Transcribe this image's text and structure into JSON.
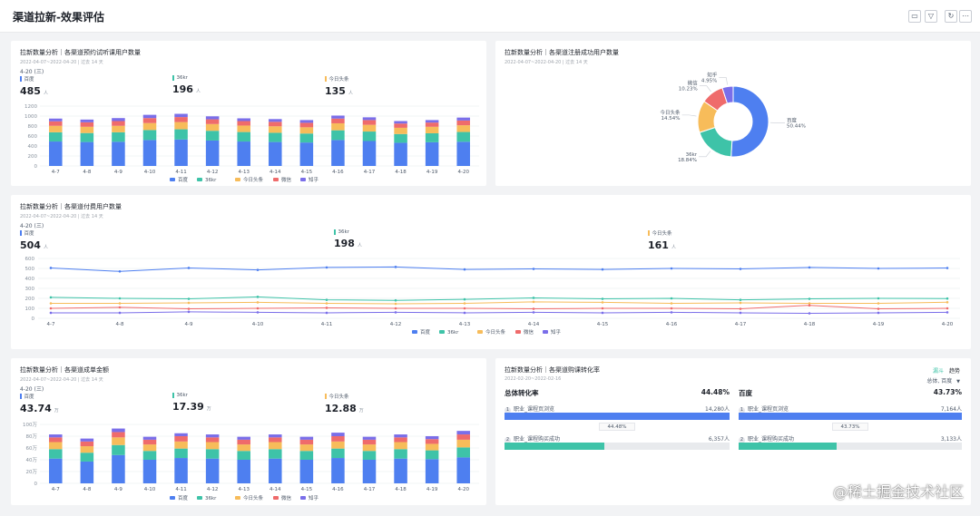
{
  "header": {
    "title": "渠道拉新-效果评估",
    "icons": [
      "save-icon",
      "filter-icon",
      "refresh-icon",
      "more-icon"
    ]
  },
  "colors": {
    "baidu": "#4e7ff0",
    "36kr": "#3ec3a8",
    "toutiao": "#f7bc5a",
    "weixin": "#ef6b6b",
    "zhihu": "#7a6ee9"
  },
  "card1": {
    "title": "拉新数量分析｜各渠道预约试听课用户数量",
    "subtitle": "2022-04-07~2022-04-20 | 过去 14 天",
    "date": "4-20 (三)",
    "kpis": [
      {
        "label": "百度",
        "value": "485",
        "unit": "人"
      },
      {
        "label": "36kr",
        "value": "196",
        "unit": "人"
      },
      {
        "label": "今日头条",
        "value": "135",
        "unit": "人"
      }
    ]
  },
  "card2": {
    "title": "拉新数量分析｜各渠道注册成功用户数量",
    "subtitle": "2022-04-07~2022-04-20 | 过去 14 天"
  },
  "card3": {
    "title": "拉新数量分析｜各渠道付费用户数量",
    "subtitle": "2022-04-07~2022-04-20 | 过去 14 天",
    "date": "4-20 (三)",
    "kpis": [
      {
        "label": "百度",
        "value": "504",
        "unit": "人"
      },
      {
        "label": "36kr",
        "value": "198",
        "unit": "人"
      },
      {
        "label": "今日头条",
        "value": "161",
        "unit": "人"
      }
    ]
  },
  "card4": {
    "title": "拉新数量分析｜各渠道成单金额",
    "subtitle": "2022-04-07~2022-04-20 | 过去 14 天",
    "date": "4-20 (三)",
    "kpis": [
      {
        "label": "百度",
        "value": "43.74",
        "unit": "万"
      },
      {
        "label": "36kr",
        "value": "17.39",
        "unit": "万"
      },
      {
        "label": "今日头条",
        "value": "12.88",
        "unit": "万"
      }
    ]
  },
  "card5": {
    "title": "拉新数量分析｜各渠道购课转化率",
    "subtitle": "2022-02-20~2022-02-16",
    "toggle_funnel": "漏斗",
    "toggle_trend": "趋势",
    "dropdown_value": "总体, 百度",
    "left": {
      "name": "总体转化率",
      "rate": "44.48%",
      "step1_num": "1",
      "step1_label": "职业_课程页浏览",
      "step1_count": "14,280人",
      "mid_rate": "44.48%",
      "step2_num": "2",
      "step2_label": "职业_课程购买成功",
      "step2_count": "6,357人"
    },
    "right": {
      "name": "百度",
      "rate": "43.73%",
      "step1_num": "1",
      "step1_label": "职业_课程页浏览",
      "step1_count": "7,164人",
      "mid_rate": "43.73%",
      "step2_num": "2",
      "step2_label": "职业_课程购买成功",
      "step2_count": "3,133人"
    }
  },
  "watermark": "@稀土掘金技术社区",
  "chart_data": [
    {
      "id": "trial_users",
      "type": "bar",
      "stacked": true,
      "categories": [
        "4-7",
        "4-8",
        "4-9",
        "4-10",
        "4-11",
        "4-12",
        "4-13",
        "4-14",
        "4-15",
        "4-16",
        "4-17",
        "4-18",
        "4-19",
        "4-20"
      ],
      "ylim": [
        0,
        1200
      ],
      "yticks": [
        "0",
        "200",
        "400",
        "600",
        "800",
        "1000",
        "1200"
      ],
      "series": [
        {
          "name": "百度",
          "values": [
            490,
            480,
            485,
            520,
            530,
            510,
            490,
            480,
            470,
            520,
            500,
            465,
            475,
            485
          ]
        },
        {
          "name": "36kr",
          "values": [
            185,
            180,
            190,
            200,
            205,
            195,
            190,
            185,
            180,
            195,
            190,
            175,
            180,
            196
          ]
        },
        {
          "name": "今日头条",
          "values": [
            130,
            125,
            130,
            140,
            145,
            135,
            130,
            130,
            125,
            140,
            135,
            125,
            130,
            135
          ]
        },
        {
          "name": "微信",
          "values": [
            90,
            90,
            95,
            100,
            100,
            95,
            90,
            90,
            90,
            95,
            95,
            85,
            85,
            95
          ]
        },
        {
          "name": "知乎",
          "values": [
            55,
            55,
            60,
            65,
            65,
            60,
            55,
            55,
            55,
            60,
            55,
            50,
            50,
            59
          ]
        }
      ],
      "legend": [
        "百度",
        "36kr",
        "今日头条",
        "微信",
        "知乎"
      ]
    },
    {
      "id": "registered_users",
      "type": "pie",
      "donut": true,
      "slices": [
        {
          "name": "百度",
          "value": 50.44,
          "label": "50.44%"
        },
        {
          "name": "36kr",
          "value": 18.84,
          "label": "18.84%"
        },
        {
          "name": "今日头条",
          "value": 14.54,
          "label": "14.54%"
        },
        {
          "name": "微信",
          "value": 10.23,
          "label": "10.23%"
        },
        {
          "name": "知乎",
          "value": 4.95,
          "label": "4.95%"
        }
      ]
    },
    {
      "id": "paid_users",
      "type": "line",
      "categories": [
        "4-7",
        "4-8",
        "4-9",
        "4-10",
        "4-11",
        "4-12",
        "4-13",
        "4-14",
        "4-15",
        "4-16",
        "4-17",
        "4-18",
        "4-19",
        "4-20"
      ],
      "ylim": [
        0,
        600
      ],
      "yticks": [
        "0",
        "100",
        "200",
        "300",
        "400",
        "500",
        "600"
      ],
      "series": [
        {
          "name": "百度",
          "values": [
            505,
            470,
            505,
            485,
            510,
            515,
            490,
            495,
            490,
            500,
            495,
            510,
            500,
            504
          ]
        },
        {
          "name": "36kr",
          "values": [
            210,
            200,
            195,
            215,
            185,
            180,
            190,
            205,
            195,
            200,
            185,
            195,
            200,
            198
          ]
        },
        {
          "name": "今日头条",
          "values": [
            150,
            150,
            155,
            160,
            150,
            145,
            150,
            165,
            160,
            150,
            155,
            150,
            150,
            161
          ]
        },
        {
          "name": "微信",
          "values": [
            100,
            110,
            95,
            100,
            105,
            100,
            100,
            95,
            100,
            100,
            95,
            130,
            95,
            100
          ]
        },
        {
          "name": "知乎",
          "values": [
            55,
            55,
            65,
            60,
            55,
            60,
            55,
            60,
            55,
            60,
            55,
            50,
            55,
            60
          ]
        }
      ],
      "legend": [
        "百度",
        "36kr",
        "今日头条",
        "微信",
        "知乎"
      ]
    },
    {
      "id": "order_amount",
      "type": "bar",
      "stacked": true,
      "categories": [
        "4-7",
        "4-8",
        "4-9",
        "4-10",
        "4-11",
        "4-12",
        "4-13",
        "4-14",
        "4-15",
        "4-16",
        "4-17",
        "4-18",
        "4-19",
        "4-20"
      ],
      "ylim": [
        0,
        100
      ],
      "yticks": [
        "0",
        "20万",
        "40万",
        "60万",
        "80万",
        "100万"
      ],
      "series": [
        {
          "name": "百度",
          "values": [
            42,
            37,
            48,
            40,
            43,
            42,
            40,
            42,
            40,
            43,
            40,
            42,
            41,
            44
          ]
        },
        {
          "name": "36kr",
          "values": [
            16,
            15,
            17,
            15,
            16,
            16,
            15,
            16,
            15,
            16,
            15,
            16,
            15,
            17
          ]
        },
        {
          "name": "今日头条",
          "values": [
            12,
            11,
            13,
            11,
            12,
            12,
            11,
            12,
            11,
            12,
            11,
            12,
            11,
            13
          ]
        },
        {
          "name": "微信",
          "values": [
            8,
            8,
            9,
            8,
            9,
            8,
            8,
            8,
            8,
            9,
            8,
            8,
            8,
            9
          ]
        },
        {
          "name": "知乎",
          "values": [
            5,
            5,
            6,
            5,
            5,
            5,
            5,
            5,
            5,
            6,
            5,
            5,
            5,
            6
          ]
        }
      ],
      "legend": [
        "百度",
        "36kr",
        "今日头条",
        "微信",
        "知乎"
      ]
    }
  ]
}
